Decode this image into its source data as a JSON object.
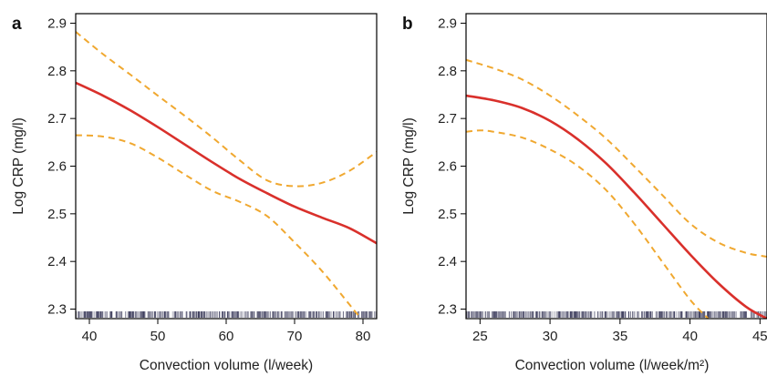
{
  "colors": {
    "estimate": "#d9302b",
    "confidence": "#f0a830",
    "rug": "#3a3a5a"
  },
  "chart_data": [
    {
      "type": "line",
      "panel_label": "a",
      "xlabel": "Convection volume (l/week)",
      "ylabel": "Log CRP (mg/l)",
      "xlim": [
        38,
        82
      ],
      "ylim": [
        2.28,
        2.92
      ],
      "xticks": [
        40,
        50,
        60,
        70,
        80
      ],
      "yticks": [
        2.3,
        2.4,
        2.5,
        2.6,
        2.7,
        2.8,
        2.9
      ],
      "legend": "none",
      "series": [
        {
          "role": "estimate",
          "x": [
            38,
            42,
            46,
            50,
            54,
            58,
            62,
            66,
            70,
            74,
            78,
            82
          ],
          "y": [
            2.775,
            2.748,
            2.717,
            2.682,
            2.645,
            2.608,
            2.573,
            2.543,
            2.515,
            2.492,
            2.47,
            2.438
          ]
        },
        {
          "role": "upper",
          "x": [
            38,
            42,
            46,
            50,
            54,
            58,
            62,
            66,
            70,
            74,
            78,
            82
          ],
          "y": [
            2.882,
            2.835,
            2.792,
            2.748,
            2.705,
            2.66,
            2.612,
            2.57,
            2.558,
            2.565,
            2.59,
            2.63
          ]
        },
        {
          "role": "lower",
          "x": [
            38,
            42,
            46,
            50,
            54,
            58,
            62,
            66,
            70,
            74,
            78,
            80
          ],
          "y": [
            2.665,
            2.662,
            2.648,
            2.618,
            2.582,
            2.548,
            2.525,
            2.495,
            2.44,
            2.38,
            2.31,
            2.275
          ]
        }
      ],
      "rug": {
        "x_min": 38,
        "x_max": 82,
        "count": 420
      }
    },
    {
      "type": "line",
      "panel_label": "b",
      "xlabel": "Convection volume (l/week/m²)",
      "ylabel": "Log CRP (mg/l)",
      "xlim": [
        24,
        45.5
      ],
      "ylim": [
        2.28,
        2.92
      ],
      "xticks": [
        25,
        30,
        35,
        40,
        45
      ],
      "yticks": [
        2.3,
        2.4,
        2.5,
        2.6,
        2.7,
        2.8,
        2.9
      ],
      "legend": "none",
      "series": [
        {
          "role": "estimate",
          "x": [
            24,
            26,
            28,
            30,
            32,
            34,
            36,
            38,
            40,
            42,
            44,
            45.5
          ],
          "y": [
            2.748,
            2.738,
            2.722,
            2.695,
            2.656,
            2.606,
            2.545,
            2.48,
            2.415,
            2.355,
            2.305,
            2.28
          ]
        },
        {
          "role": "upper",
          "x": [
            24,
            26,
            28,
            30,
            32,
            34,
            36,
            38,
            40,
            42,
            44,
            45.5
          ],
          "y": [
            2.823,
            2.805,
            2.782,
            2.748,
            2.706,
            2.658,
            2.6,
            2.54,
            2.48,
            2.44,
            2.418,
            2.41
          ]
        },
        {
          "role": "lower",
          "x": [
            24,
            25,
            26,
            28,
            30,
            32,
            34,
            36,
            38,
            40,
            41.3
          ],
          "y": [
            2.672,
            2.675,
            2.672,
            2.66,
            2.635,
            2.6,
            2.55,
            2.48,
            2.4,
            2.32,
            2.28
          ]
        }
      ],
      "rug": {
        "x_min": 24,
        "x_max": 45.5,
        "count": 420
      }
    }
  ]
}
